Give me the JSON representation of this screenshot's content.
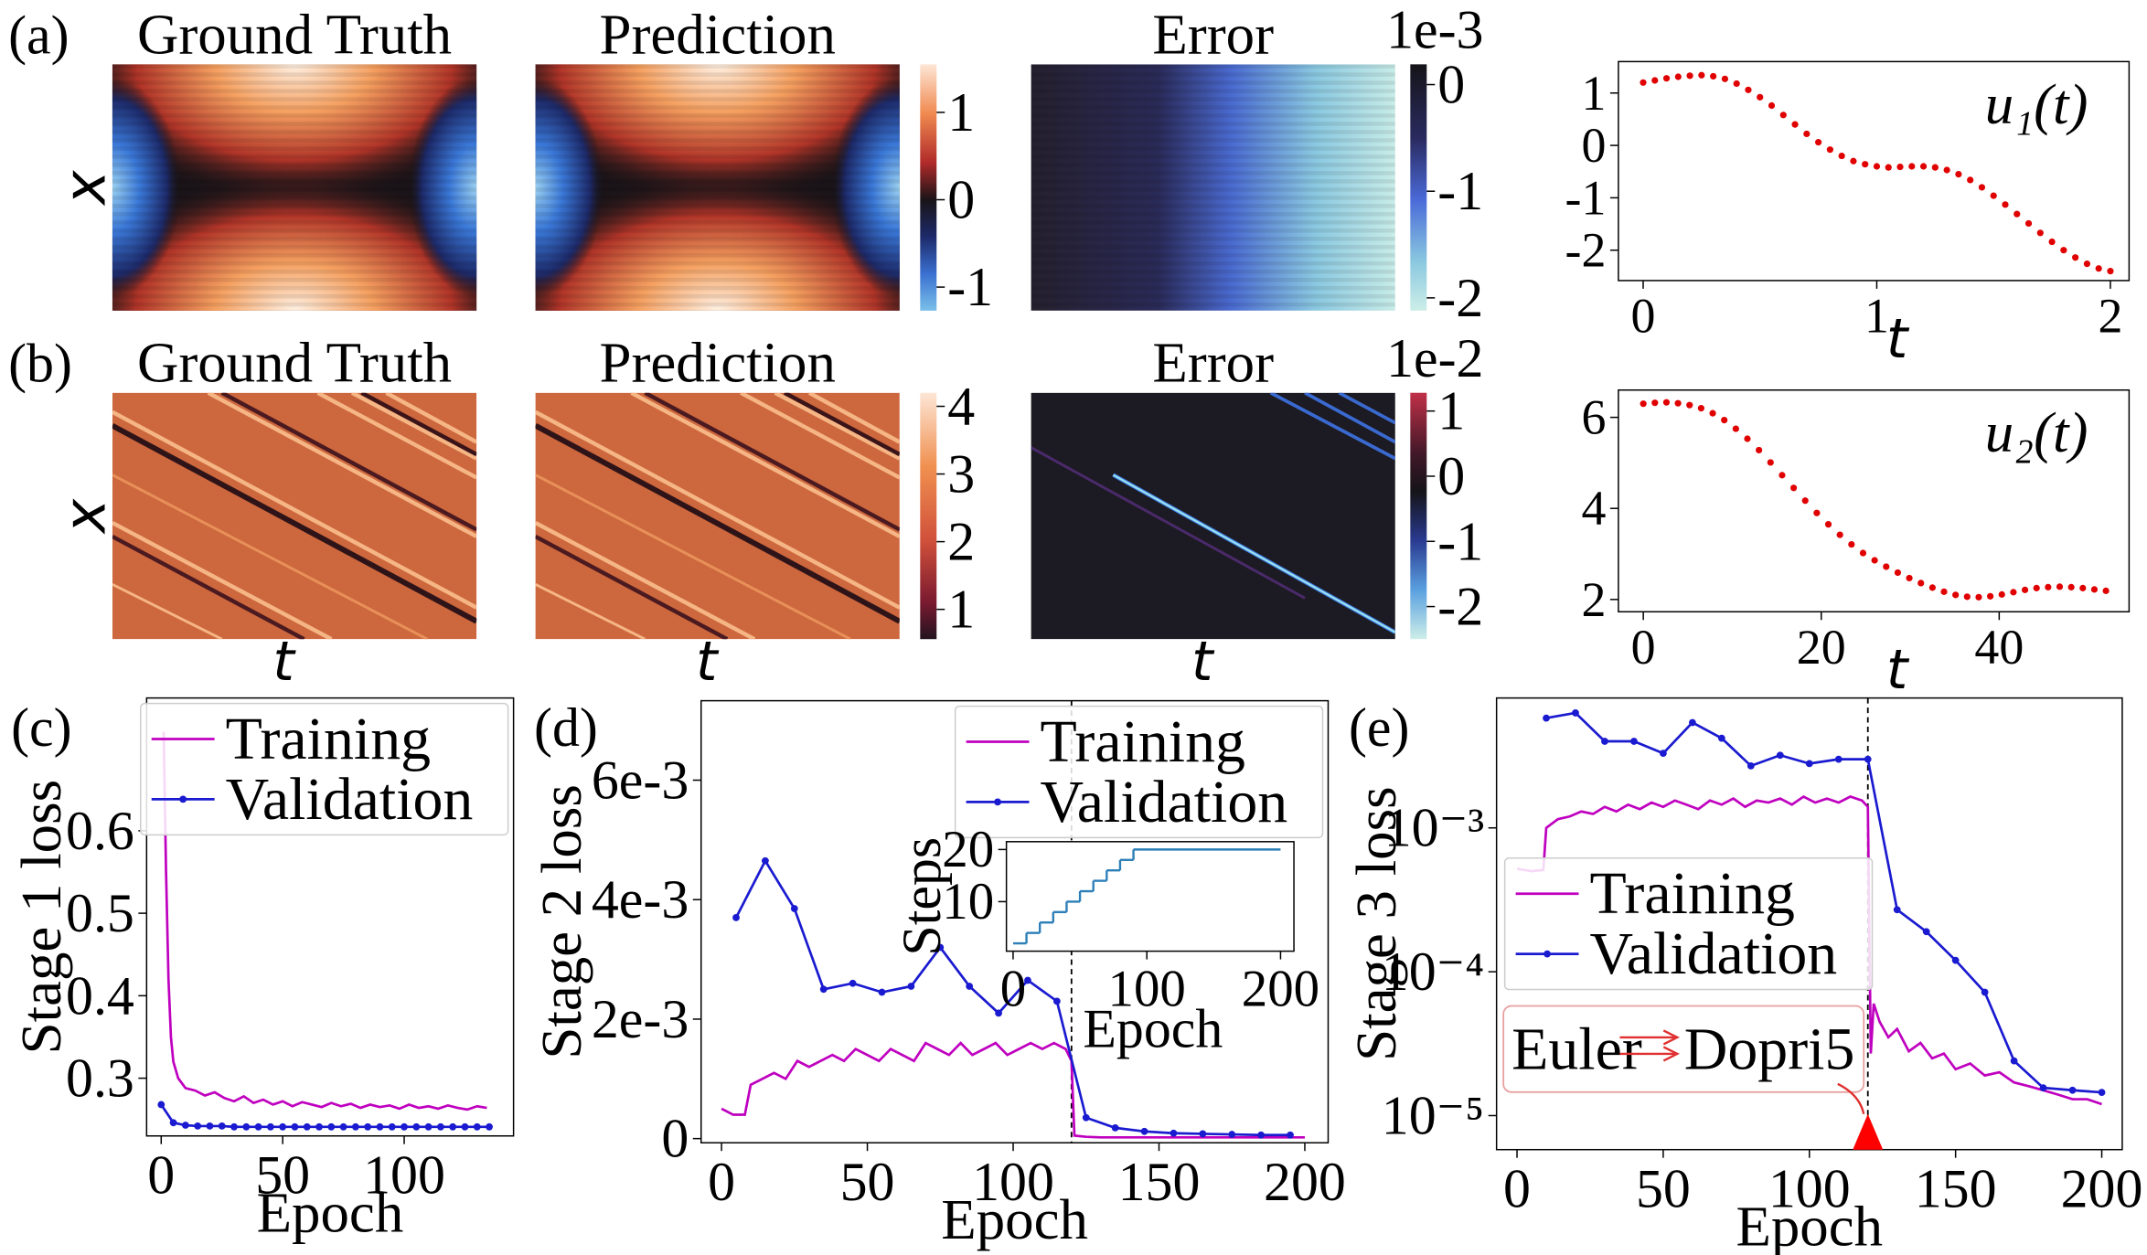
{
  "chart_data": [
    {
      "type": "heatmap",
      "panel_label": "(a)",
      "titles": [
        "Ground Truth",
        "Prediction",
        "Error"
      ],
      "ylabel": "x",
      "colorbars": [
        {
          "lim": [
            -1.27,
            1.55
          ],
          "ticks": [
            -1,
            0,
            1
          ]
        },
        {
          "lim": [
            -2.12,
            0.19
          ],
          "ticks": [
            -2,
            -1,
            0
          ],
          "offset_label": "1e-3"
        }
      ]
    },
    {
      "type": "heatmap",
      "panel_label": "(b)",
      "titles": [
        "Ground Truth",
        "Prediction",
        "Error"
      ],
      "ylabel": "x",
      "xlabel": "t",
      "colorbars": [
        {
          "lim": [
            0.56,
            4.2
          ],
          "ticks": [
            1,
            2,
            3,
            4
          ]
        },
        {
          "lim": [
            -2.5,
            1.28
          ],
          "ticks": [
            -2,
            -1,
            0,
            1
          ],
          "offset_label": "1e-2"
        }
      ]
    },
    {
      "type": "scatter",
      "annotation": "u₁(t)",
      "xlabel": "t",
      "color": "#e00000",
      "x": [
        0,
        0.05,
        0.1,
        0.15,
        0.2,
        0.25,
        0.3,
        0.35,
        0.4,
        0.45,
        0.5,
        0.55,
        0.6,
        0.65,
        0.7,
        0.75,
        0.8,
        0.85,
        0.9,
        0.95,
        1.0,
        1.05,
        1.1,
        1.15,
        1.2,
        1.25,
        1.3,
        1.35,
        1.4,
        1.45,
        1.5,
        1.55,
        1.6,
        1.65,
        1.7,
        1.75,
        1.8,
        1.85,
        1.9,
        1.95,
        2.0
      ],
      "values": [
        1.2,
        1.24,
        1.28,
        1.31,
        1.33,
        1.34,
        1.32,
        1.27,
        1.18,
        1.06,
        0.92,
        0.76,
        0.58,
        0.4,
        0.22,
        0.06,
        -0.08,
        -0.2,
        -0.3,
        -0.36,
        -0.4,
        -0.42,
        -0.41,
        -0.4,
        -0.4,
        -0.42,
        -0.47,
        -0.55,
        -0.66,
        -0.8,
        -0.96,
        -1.13,
        -1.31,
        -1.49,
        -1.67,
        -1.84,
        -2.0,
        -2.14,
        -2.26,
        -2.35,
        -2.4
      ],
      "xlim": [
        -0.106,
        2.08
      ],
      "ylim": [
        -2.58,
        1.6
      ],
      "xticks": [
        0,
        1,
        2
      ],
      "yticks": [
        -2,
        -1,
        0,
        1
      ]
    },
    {
      "type": "scatter",
      "annotation": "u₂(t)",
      "xlabel": "t",
      "color": "#e00000",
      "x": [
        0,
        1.3,
        2.6,
        3.9,
        5.2,
        6.5,
        7.8,
        9.1,
        10.4,
        11.7,
        13.0,
        14.3,
        15.6,
        16.9,
        18.2,
        19.5,
        20.8,
        22.1,
        23.4,
        24.7,
        26.0,
        27.3,
        28.6,
        29.9,
        31.2,
        32.5,
        33.8,
        35.1,
        36.4,
        37.7,
        39.0,
        40.3,
        41.6,
        42.9,
        44.2,
        45.5,
        46.8,
        48.1,
        49.4,
        50.7,
        52.0
      ],
      "values": [
        6.3,
        6.32,
        6.33,
        6.31,
        6.27,
        6.2,
        6.09,
        5.94,
        5.75,
        5.53,
        5.28,
        5.01,
        4.73,
        4.45,
        4.17,
        3.9,
        3.65,
        3.42,
        3.21,
        3.02,
        2.86,
        2.72,
        2.59,
        2.47,
        2.36,
        2.26,
        2.17,
        2.1,
        2.06,
        2.05,
        2.07,
        2.11,
        2.16,
        2.21,
        2.25,
        2.27,
        2.28,
        2.27,
        2.25,
        2.22,
        2.19
      ],
      "xlim": [
        -2.8,
        54.6
      ],
      "ylim": [
        1.73,
        6.6
      ],
      "xticks": [
        0,
        20,
        40
      ],
      "yticks": [
        2,
        4,
        6
      ]
    },
    {
      "type": "line",
      "panel_label": "(c)",
      "xlabel": "Epoch",
      "ylabel": "Stage 1 loss",
      "legend": "upper right",
      "xlim": [
        -6,
        145
      ],
      "ylim": [
        0.23,
        0.761
      ],
      "xticks": [
        0,
        50,
        100
      ],
      "yticks": [
        0.3,
        0.4,
        0.5,
        0.6
      ],
      "series": [
        {
          "name": "Training",
          "color": "#bf00bf",
          "marker": false,
          "x": [
            1,
            2,
            3,
            4,
            5,
            7,
            10,
            14,
            18,
            22,
            26,
            30,
            34,
            38,
            42,
            46,
            50,
            54,
            58,
            62,
            66,
            70,
            74,
            78,
            82,
            86,
            90,
            94,
            98,
            102,
            106,
            110,
            114,
            118,
            122,
            126,
            130,
            134
          ],
          "values": [
            0.72,
            0.55,
            0.42,
            0.35,
            0.32,
            0.3,
            0.288,
            0.285,
            0.279,
            0.283,
            0.276,
            0.272,
            0.278,
            0.27,
            0.274,
            0.268,
            0.272,
            0.266,
            0.271,
            0.268,
            0.265,
            0.27,
            0.266,
            0.269,
            0.264,
            0.268,
            0.265,
            0.267,
            0.263,
            0.268,
            0.264,
            0.266,
            0.263,
            0.267,
            0.264,
            0.262,
            0.266,
            0.264
          ]
        },
        {
          "name": "Validation",
          "color": "#1a1ad0",
          "marker": true,
          "x": [
            0,
            5,
            10,
            15,
            20,
            25,
            30,
            35,
            40,
            45,
            50,
            55,
            60,
            65,
            70,
            75,
            80,
            85,
            90,
            95,
            100,
            105,
            110,
            115,
            120,
            125,
            130,
            135
          ],
          "values": [
            0.268,
            0.246,
            0.243,
            0.242,
            0.242,
            0.242,
            0.241,
            0.241,
            0.241,
            0.241,
            0.241,
            0.241,
            0.241,
            0.241,
            0.241,
            0.241,
            0.241,
            0.241,
            0.241,
            0.241,
            0.241,
            0.241,
            0.241,
            0.241,
            0.241,
            0.241,
            0.241,
            0.241
          ]
        }
      ]
    },
    {
      "type": "line",
      "panel_label": "(d)",
      "xlabel": "Epoch",
      "ylabel": "Stage 2 loss",
      "legend": "upper right",
      "vline": 120,
      "xlim": [
        -7,
        208
      ],
      "ylim": [
        -7e-05,
        0.00733
      ],
      "xticks": [
        0,
        50,
        100,
        150,
        200
      ],
      "yticks": [
        0,
        {
          "value": 0.002,
          "label": "2e-3"
        },
        {
          "value": 0.004,
          "label": "4e-3"
        },
        {
          "value": 0.006,
          "label": "6e-3"
        }
      ],
      "series": [
        {
          "name": "Training",
          "color": "#bf00bf",
          "marker": false,
          "x": [
            0,
            4,
            8,
            10,
            14,
            18,
            22,
            26,
            30,
            34,
            38,
            42,
            46,
            50,
            54,
            58,
            62,
            66,
            70,
            74,
            78,
            82,
            86,
            90,
            94,
            98,
            102,
            106,
            110,
            114,
            118,
            120,
            121,
            125,
            130,
            140,
            150,
            160,
            170,
            180,
            190,
            200
          ],
          "values": [
            0.0005,
            0.0004,
            0.0004,
            0.0009,
            0.001,
            0.0011,
            0.001,
            0.0013,
            0.0012,
            0.0013,
            0.0014,
            0.0013,
            0.0015,
            0.0014,
            0.0013,
            0.0015,
            0.0014,
            0.0013,
            0.0016,
            0.0015,
            0.0014,
            0.0016,
            0.0014,
            0.0015,
            0.0016,
            0.0014,
            0.0015,
            0.0016,
            0.0015,
            0.0016,
            0.0015,
            0.0013,
            5e-05,
            3e-05,
            2e-05,
            2e-05,
            2e-05,
            2e-05,
            2e-05,
            2e-05,
            2e-05,
            2e-05
          ]
        },
        {
          "name": "Validation",
          "color": "#1a1ad0",
          "marker": true,
          "x": [
            5,
            15,
            25,
            35,
            45,
            55,
            65,
            75,
            85,
            95,
            105,
            115,
            125,
            135,
            145,
            155,
            165,
            175,
            185,
            195
          ],
          "values": [
            0.0037,
            0.00465,
            0.00385,
            0.0025,
            0.0026,
            0.00245,
            0.00255,
            0.0032,
            0.00255,
            0.0021,
            0.00265,
            0.0023,
            0.00035,
            0.00018,
            0.00012,
            9e-05,
            8e-05,
            7e-05,
            6e-05,
            6e-05
          ]
        }
      ],
      "inset": {
        "type": "step",
        "xlabel": "Epoch",
        "ylabel": "Steps",
        "color": "#2c7fb8",
        "x": [
          0,
          10,
          20,
          30,
          40,
          50,
          60,
          70,
          80,
          90,
          200
        ],
        "values": [
          2,
          4,
          6,
          8,
          10,
          12,
          14,
          16,
          18,
          20
        ],
        "xlim": [
          -5,
          210
        ],
        "ylim": [
          0.5,
          21.5
        ],
        "xticks": [
          0,
          100,
          200
        ],
        "yticks": [
          10,
          20
        ]
      }
    },
    {
      "type": "line",
      "panel_label": "(e)",
      "xlabel": "Epoch",
      "ylabel": "Stage 3 loss",
      "legend": "center left",
      "vline": 120,
      "log": true,
      "annotation_from": "Euler",
      "annotation_to": "Dopri5",
      "xlim": [
        -7,
        207
      ],
      "ylim": [
        5.8e-06,
        0.008
      ],
      "xticks": [
        0,
        50,
        100,
        150,
        200
      ],
      "yticks": [
        {
          "value": 0.001,
          "label": "10⁻³"
        },
        {
          "value": 0.0001,
          "label": "10⁻⁴"
        },
        {
          "value": 1e-05,
          "label": "10⁻⁵"
        }
      ],
      "series": [
        {
          "name": "Training",
          "color": "#bf00bf",
          "marker": false,
          "x": [
            0,
            5,
            9,
            10,
            14,
            18,
            22,
            26,
            30,
            34,
            38,
            42,
            46,
            50,
            54,
            58,
            62,
            66,
            70,
            74,
            78,
            82,
            86,
            90,
            94,
            98,
            102,
            106,
            110,
            114,
            118,
            120,
            121,
            122,
            124,
            127,
            130,
            134,
            138,
            142,
            146,
            150,
            155,
            160,
            165,
            170,
            175,
            180,
            185,
            190,
            195,
            200
          ],
          "values": [
            0.00052,
            0.0005,
            0.00051,
            0.001,
            0.00115,
            0.0012,
            0.0013,
            0.00125,
            0.0014,
            0.0013,
            0.00145,
            0.00135,
            0.0015,
            0.0014,
            0.00155,
            0.00145,
            0.00135,
            0.00155,
            0.00145,
            0.0016,
            0.0014,
            0.00155,
            0.0015,
            0.0016,
            0.00145,
            0.00165,
            0.0015,
            0.0016,
            0.0015,
            0.00165,
            0.00155,
            0.0014,
            2.7e-05,
            6e-05,
            4.5e-05,
            3.5e-05,
            4e-05,
            2.8e-05,
            3.2e-05,
            2.5e-05,
            2.7e-05,
            2.1e-05,
            2.3e-05,
            1.9e-05,
            2e-05,
            1.7e-05,
            1.6e-05,
            1.5e-05,
            1.4e-05,
            1.3e-05,
            1.3e-05,
            1.2e-05
          ]
        },
        {
          "name": "Validation",
          "color": "#1a1ad0",
          "marker": true,
          "x": [
            10,
            20,
            30,
            40,
            50,
            60,
            70,
            80,
            90,
            100,
            110,
            120,
            130,
            140,
            150,
            160,
            170,
            180,
            190,
            200
          ],
          "values": [
            0.0058,
            0.0063,
            0.004,
            0.004,
            0.0033,
            0.0054,
            0.0042,
            0.0027,
            0.0032,
            0.0028,
            0.003,
            0.003,
            0.00027,
            0.00019,
            0.00012,
            7.2e-05,
            2.4e-05,
            1.56e-05,
            1.5e-05,
            1.45e-05
          ]
        }
      ]
    }
  ]
}
